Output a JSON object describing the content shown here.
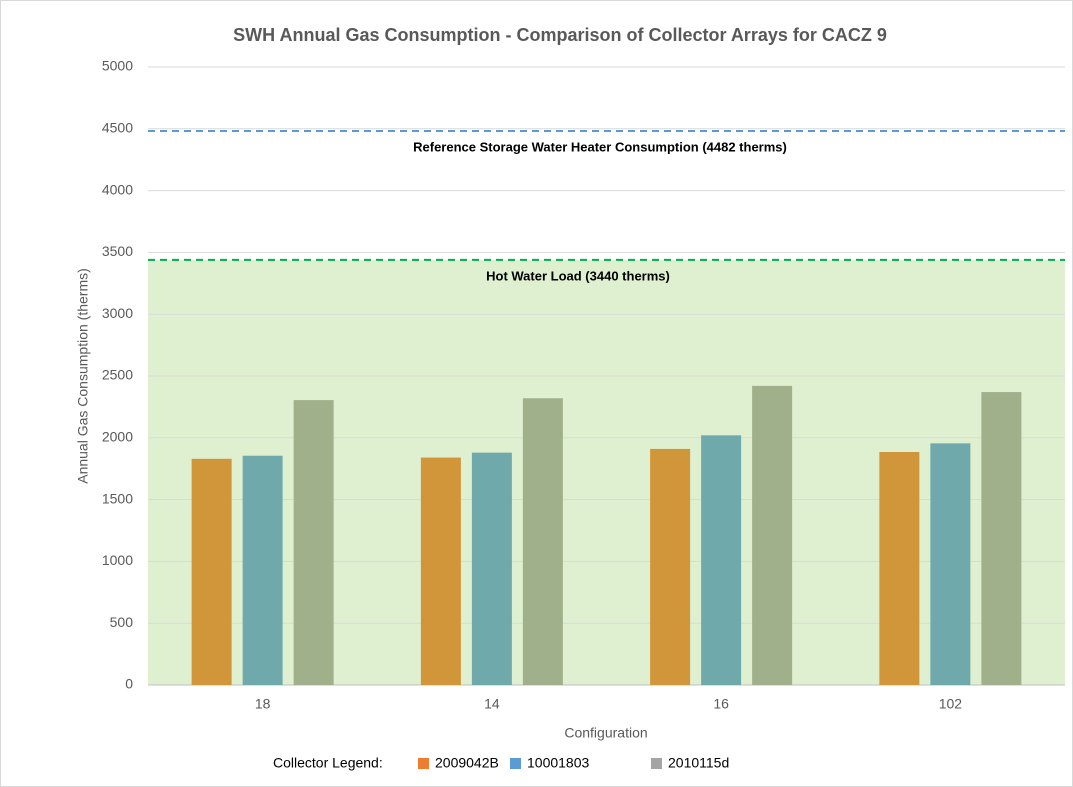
{
  "chart_data": {
    "type": "bar",
    "title": "SWH Annual Gas Consumption - Comparison of Collector Arrays for CACZ 9",
    "x_label": "Configuration",
    "y_label": "Annual Gas Consumption (therms)",
    "legend_title": "Collector Legend:",
    "categories": [
      "18",
      "14",
      "16",
      "102"
    ],
    "series": [
      {
        "name": "2009042B",
        "color": "#D1953A",
        "legend_color": "#ED7D31",
        "values": [
          1830,
          1840,
          1910,
          1885
        ]
      },
      {
        "name": "10001803",
        "color": "#6FA9AB",
        "legend_color": "#5B9BD5",
        "values": [
          1855,
          1880,
          2020,
          1955
        ]
      },
      {
        "name": "2010115d",
        "color": "#A0B08A",
        "legend_color": "#A5A5A5",
        "values": [
          2305,
          2320,
          2420,
          2370
        ]
      }
    ],
    "reference_lines": [
      {
        "label": "Reference Storage Water Heater Consumption (4482 therms)",
        "value": 4482,
        "color": "#5B9BD5"
      },
      {
        "label": "Hot Water Load (3440 therms)",
        "value": 3440,
        "color": "#00B050",
        "fill": "#DFF0D0"
      }
    ],
    "ylim": [
      0,
      5000
    ],
    "yticks": [
      0,
      500,
      1000,
      1500,
      2000,
      2500,
      3000,
      3500,
      4000,
      4500,
      5000
    ],
    "grid": true
  }
}
